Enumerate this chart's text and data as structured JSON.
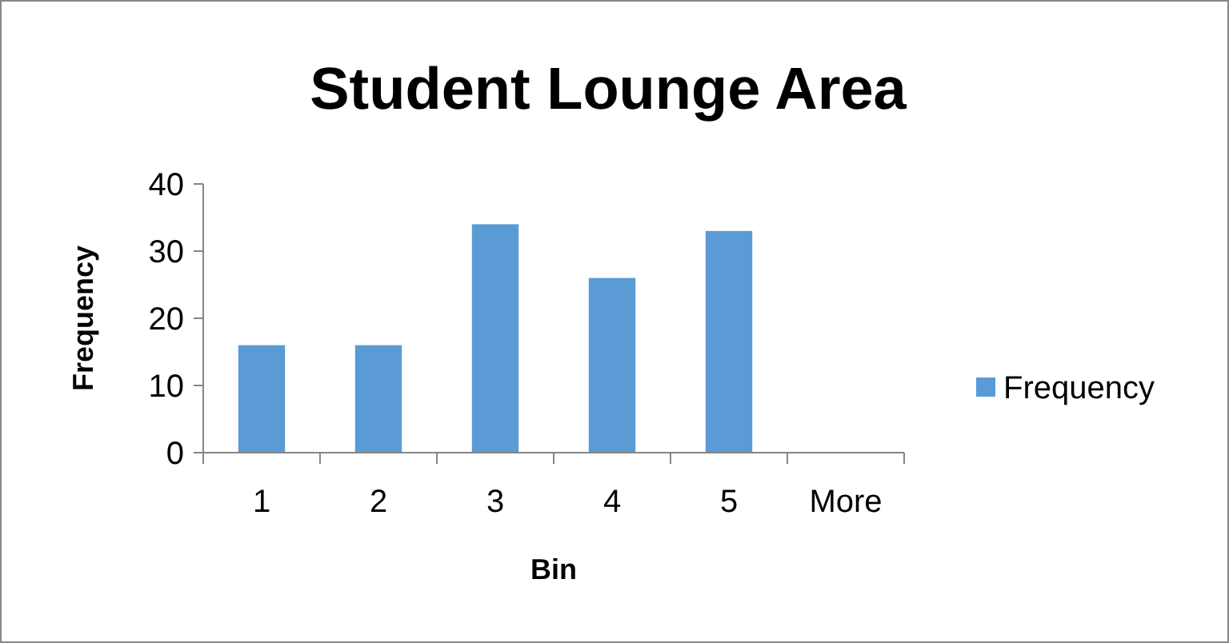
{
  "chart_data": {
    "type": "bar",
    "title": "Student Lounge Area",
    "xlabel": "Bin",
    "ylabel": "Frequency",
    "categories": [
      "1",
      "2",
      "3",
      "4",
      "5",
      "More"
    ],
    "series": [
      {
        "name": "Frequency",
        "color": "#5b9bd5",
        "values": [
          16,
          16,
          34,
          26,
          33,
          0
        ]
      }
    ],
    "ylim": [
      0,
      40
    ],
    "yticks": [
      0,
      10,
      20,
      30,
      40
    ],
    "grid": false,
    "legend": "right"
  }
}
